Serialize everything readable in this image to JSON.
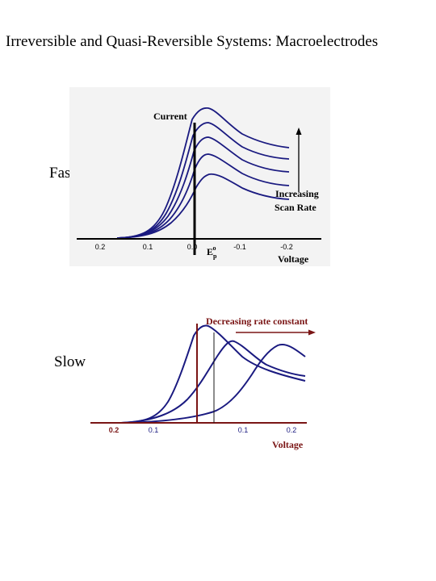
{
  "title": "Irreversible and Quasi-Reversible Systems: Macroelectrodes",
  "fast": {
    "side_label": "Fast",
    "y_label": "Current",
    "annotation_line1": "Increasing",
    "annotation_line2": "Scan Rate",
    "x_label": "Voltage",
    "ep_label": "E",
    "ep_sub": "p",
    "ep_sup": "o",
    "ticks": [
      "0.2",
      "0.1",
      "0.0",
      "-0.1",
      "-0.2"
    ]
  },
  "slow": {
    "side_label": "Slow",
    "arrow_label": "Decreasing rate constant",
    "x_label": "Voltage",
    "ticks": [
      "0.2",
      "0.1",
      "0.1",
      "0.2"
    ]
  },
  "colors": {
    "curve": "#1a1a80",
    "slow_axis": "#7a1515",
    "fast_bg": "#f3f3f3"
  }
}
